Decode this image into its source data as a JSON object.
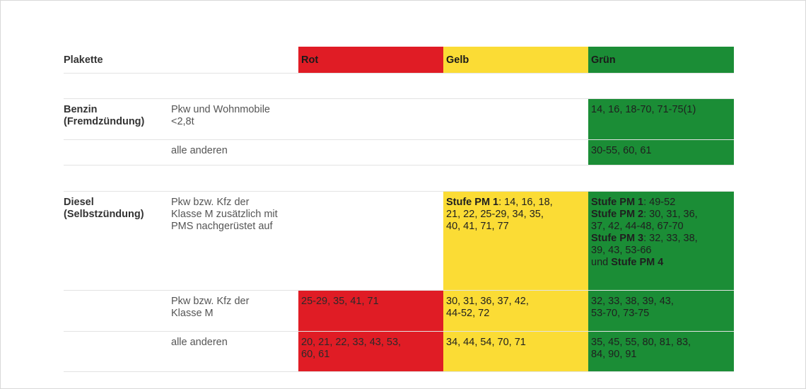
{
  "header": {
    "plakette": "Plakette",
    "rot": "Rot",
    "gelb": "Gelb",
    "gruen": "Grün"
  },
  "benzin": {
    "fuel_line1": "Benzin",
    "fuel_line2": "(Fremdzündung)",
    "row1": {
      "vehicle_line1": "Pkw und Wohnmobile",
      "vehicle_line2": "<2,8t",
      "gruen": "14, 16, 18-70, 71-75(1)"
    },
    "row2": {
      "vehicle": "alle anderen",
      "gruen": "30-55, 60, 61"
    }
  },
  "diesel": {
    "fuel_line1": "Diesel",
    "fuel_line2": "(Selbstzündung)",
    "row1": {
      "vehicle_line1": "Pkw bzw. Kfz der",
      "vehicle_line2": "Klasse M zusätzlich mit",
      "vehicle_line3": "PMS nachgerüstet auf",
      "gelb_label": "Stufe PM 1",
      "gelb_line1": ": 14, 16, 18,",
      "gelb_line2": "21, 22, 25-29, 34, 35,",
      "gelb_line3": "40, 41, 71, 77",
      "gruen_pm1_label": "Stufe PM 1",
      "gruen_pm1": ": 49-52",
      "gruen_pm2_label": "Stufe PM 2",
      "gruen_pm2": ": 30, 31, 36,",
      "gruen_pm2_line2": "37, 42, 44-48, 67-70",
      "gruen_pm3_label": "Stufe PM 3",
      "gruen_pm3": ": 32, 33, 38,",
      "gruen_pm3_line2": "39, 43, 53-66",
      "gruen_und": "und ",
      "gruen_pm4_label": "Stufe PM 4"
    },
    "row2": {
      "vehicle_line1": "Pkw bzw. Kfz der",
      "vehicle_line2": "Klasse M",
      "rot": "25-29, 35, 41, 71",
      "gelb_line1": "30, 31, 36, 37, 42,",
      "gelb_line2": "44-52, 72",
      "gruen_line1": "32, 33, 38, 39, 43,",
      "gruen_line2": "53-70, 73-75"
    },
    "row3": {
      "vehicle": "alle anderen",
      "rot_line1": "20, 21, 22, 33, 43, 53,",
      "rot_line2": "60, 61",
      "gelb": "34, 44, 54, 70, 71",
      "gruen_line1": "35, 45, 55, 80, 81, 83,",
      "gruen_line2": "84, 90, 91"
    }
  },
  "colors": {
    "rot": "#e01c25",
    "gelb": "#fbdc35",
    "gruen": "#1b8d36"
  }
}
